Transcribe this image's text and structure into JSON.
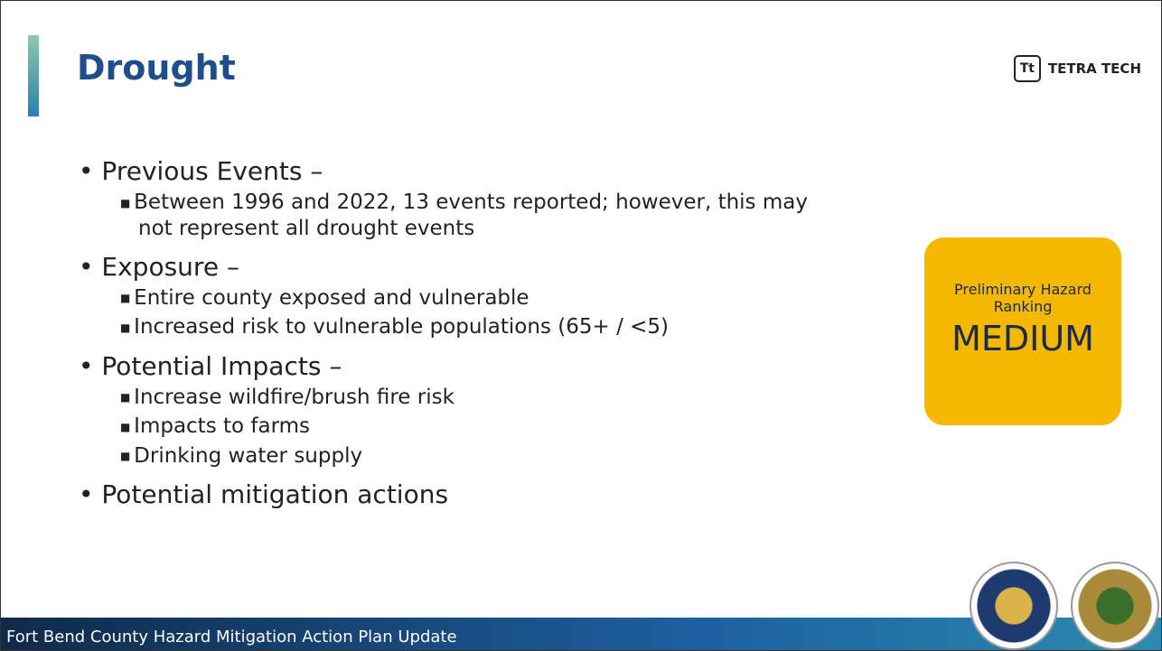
{
  "header": {
    "title": "Drought",
    "logo": "TETRA TECH"
  },
  "bullets": [
    {
      "text": "Previous Events –",
      "subs": [
        "Between 1996 and 2022, 13 events reported; however, this may not represent all drought events"
      ]
    },
    {
      "text": "Exposure –",
      "subs": [
        "Entire county exposed and vulnerable",
        "Increased risk to vulnerable populations (65+ / <5)"
      ]
    },
    {
      "text": "Potential Impacts –",
      "subs": [
        "Increase wildfire/brush fire risk",
        "Impacts to farms",
        "Drinking water supply"
      ]
    },
    {
      "text": "Potential mitigation actions",
      "subs": []
    }
  ],
  "ranking": {
    "label": "Preliminary Hazard Ranking",
    "value": "MEDIUM"
  },
  "footer": {
    "text": "Fort Bend County Hazard Mitigation Action Plan Update"
  }
}
